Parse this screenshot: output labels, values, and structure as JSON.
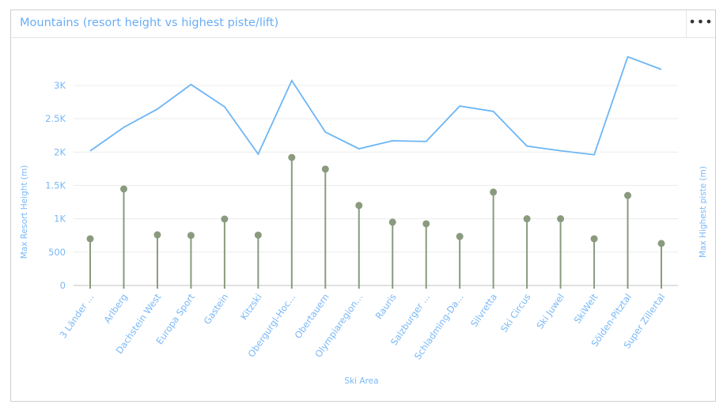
{
  "header": {
    "title": "Mountains (resort height vs highest piste/lift)",
    "menu_label": "•••"
  },
  "chart_data": {
    "type": "line+lollipop",
    "xlabel": "Ski Area",
    "ylabel_left": "Max Resort Height (m)",
    "ylabel_right": "Max Highest piste (m)",
    "ylim": [
      0,
      3500
    ],
    "yticks": [
      "0",
      "500",
      "1K",
      "1.5K",
      "2K",
      "2.5K",
      "3K"
    ],
    "ytick_values": [
      0,
      500,
      1000,
      1500,
      2000,
      2500,
      3000
    ],
    "grid": true,
    "categories": [
      "3 Länder ...",
      "Arlberg",
      "Dachstein West",
      "Europa Sport",
      "Gastein",
      "Kitzski",
      "Obergurgl-Hoc...",
      "Obertauern",
      "Olympiaregion...",
      "Rauris",
      "Salzburger ...",
      "Schladming-Da...",
      "Silvretta",
      "Ski Circus",
      "Ski Juwel",
      "SkiWelt",
      "Sölden-Pitztal",
      "Super Zillertal"
    ],
    "series": [
      {
        "name": "Max Resort Height (m)",
        "type": "lollipop",
        "color": "#8a9a7e",
        "values": [
          700,
          1447,
          760,
          750,
          996,
          755,
          1920,
          1745,
          1200,
          950,
          925,
          735,
          1400,
          1000,
          1000,
          700,
          1350,
          630
        ]
      },
      {
        "name": "Max Highest piste (m)",
        "type": "line",
        "color": "#6cb5f5",
        "values": [
          2017,
          2372,
          2645,
          3013,
          2680,
          1970,
          3072,
          2300,
          2050,
          2170,
          2160,
          2690,
          2610,
          2090,
          2020,
          1960,
          3430,
          3240
        ]
      }
    ]
  }
}
